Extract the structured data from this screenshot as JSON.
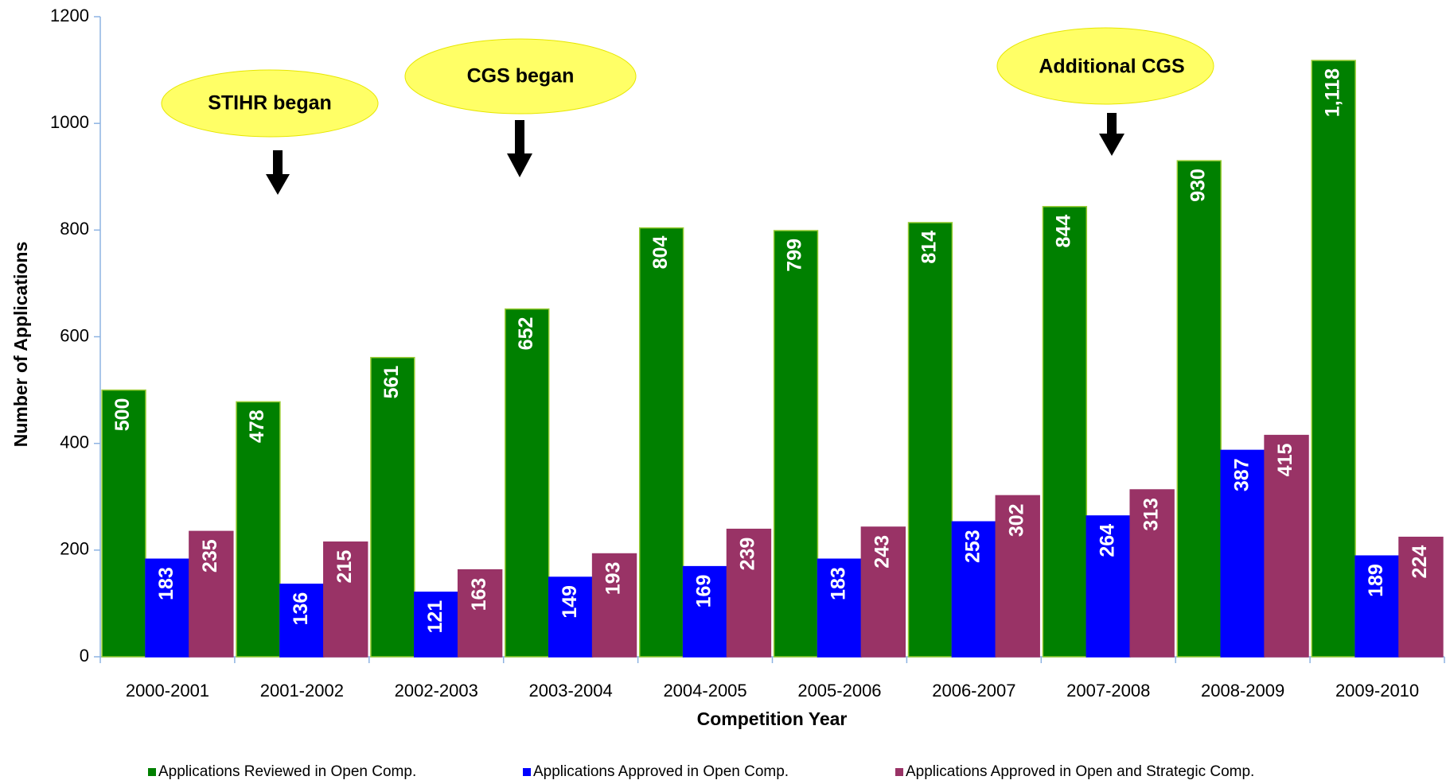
{
  "chart_data": {
    "type": "bar",
    "x_label": "Competition Year",
    "y_label": "Number of Applications",
    "categories": [
      "2000-2001",
      "2001-2002",
      "2002-2003",
      "2003-2004",
      "2004-2005",
      "2005-2006",
      "2006-2007",
      "2007-2008",
      "2008-2009",
      "2009-2010"
    ],
    "series": [
      {
        "name": "Applications Reviewed in Open Comp.",
        "color": "#008000",
        "values": [
          500,
          478,
          561,
          652,
          804,
          799,
          814,
          844,
          930,
          1118
        ],
        "value_labels": [
          "500",
          "478",
          "561",
          "652",
          "804",
          "799",
          "814",
          "844",
          "930",
          "1,118"
        ]
      },
      {
        "name": "Applications Approved in Open Comp.",
        "color": "#0000ff",
        "values": [
          183,
          136,
          121,
          149,
          169,
          183,
          253,
          264,
          387,
          189
        ]
      },
      {
        "name": "Applications Approved in Open and Strategic Comp.",
        "color": "#993366",
        "values": [
          235,
          215,
          163,
          193,
          239,
          243,
          302,
          313,
          415,
          224
        ]
      }
    ],
    "ylim": [
      0,
      1200
    ],
    "yticks": [
      0,
      200,
      400,
      600,
      800,
      1000,
      1200
    ],
    "grid": false,
    "legend": "bottom",
    "annotations": [
      "STIHR began",
      "CGS began",
      "Additional CGS"
    ]
  }
}
